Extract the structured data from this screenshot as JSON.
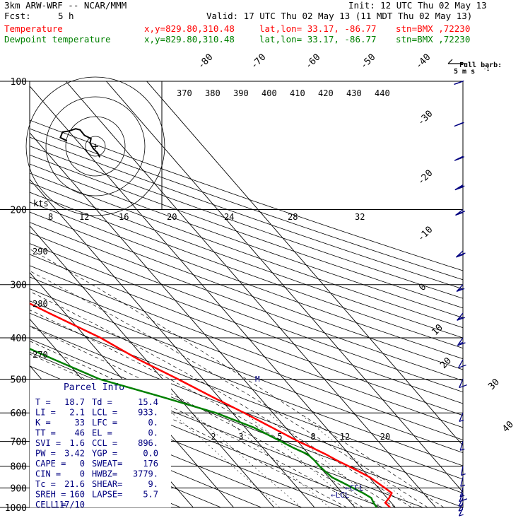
{
  "header": {
    "model": "3km ARW-WRF -- NCAR/MMM",
    "init": "Init: 12 UTC Thu 02 May 13",
    "fcst_label": "Fcst:",
    "fcst_value": "5 h",
    "valid": "Valid: 17 UTC Thu 02 May 13 (11 MDT Thu 02 May 13)"
  },
  "series_labels": [
    {
      "name": "Temperature",
      "xy": "x,y=829.80,310.48",
      "latlon": "lat,lon= 33.17, -86.77",
      "stn": "stn=BMX ,72230",
      "color": "#ff0000"
    },
    {
      "name": "Dewpoint temperature",
      "xy": "x,y=829.80,310.48",
      "latlon": "lat,lon= 33.17, -86.77",
      "stn": "stn=BMX ,72230",
      "color": "#008000"
    }
  ],
  "wind_legend": {
    "line1": "Full barb:",
    "line2": "5 m s",
    "sup": "-1"
  },
  "hodograph": {
    "units": "kts"
  },
  "parcel_info": {
    "title": "Parcel Info",
    "rows": [
      [
        "T  =",
        "18.7",
        "Td =",
        "15.4"
      ],
      [
        "LI =",
        "2.1",
        "LCL =",
        "933."
      ],
      [
        "K  =",
        "33",
        "LFC =",
        "0."
      ],
      [
        "TT =",
        "46",
        "EL  =",
        "0."
      ],
      [
        "SVI =",
        "1.6",
        "CCL =",
        "896."
      ],
      [
        "PW =",
        "3.42",
        "YGP =",
        "0.0"
      ],
      [
        "CAPE =",
        "0",
        "SWEAT=",
        "176"
      ],
      [
        "CIN =",
        "0",
        "HWBZ=",
        "3779."
      ],
      [
        "Tc =",
        "21.6",
        "SHEAR=",
        "9."
      ],
      [
        "SREH =",
        "160",
        "LAPSE=",
        "5.7"
      ],
      [
        "CELL =",
        "117/10",
        "",
        ""
      ]
    ]
  },
  "annotations": {
    "ccl": "CCL",
    "lcl": "LCL",
    "marker": "M"
  },
  "chart_data": {
    "type": "line",
    "pressure_levels": [
      100,
      200,
      300,
      400,
      500,
      600,
      700,
      800,
      900,
      1000
    ],
    "series": [
      {
        "name": "Temperature",
        "color": "#ff0000",
        "p": [
          1000,
          975,
          950,
          925,
          900,
          875,
          850,
          825,
          800,
          775,
          750,
          725,
          700,
          650,
          600,
          550,
          500,
          450,
          400,
          350,
          300,
          250,
          200,
          190,
          175,
          150,
          125,
          110,
          100
        ],
        "t": [
          18.7,
          18.5,
          20.5,
          22.2,
          21.6,
          20.9,
          20.2,
          18.8,
          17.3,
          15.6,
          14.2,
          12.3,
          10.2,
          6.7,
          2.9,
          -1.6,
          -6.2,
          -11.7,
          -16.5,
          -23.9,
          -32.0,
          -42.2,
          -54.2,
          -56.1,
          -56.5,
          -58.7,
          -61.3,
          -63.8,
          -65.5
        ]
      },
      {
        "name": "Dewpoint temperature",
        "color": "#008000",
        "p": [
          1000,
          975,
          950,
          925,
          900,
          875,
          850,
          825,
          800,
          775,
          750,
          725,
          700,
          650,
          600,
          550,
          500,
          450,
          400,
          375,
          350,
          325,
          300,
          275,
          250,
          225,
          200,
          175,
          160,
          150,
          135,
          115,
          100
        ],
        "t": [
          15.4,
          15.6,
          16.1,
          15.1,
          13.7,
          12.3,
          10.8,
          10.4,
          10.1,
          10.1,
          9.7,
          7.6,
          5.9,
          2.2,
          -4.1,
          -14.1,
          -25.6,
          -32.6,
          -40.2,
          -45.3,
          -45.2,
          -49.0,
          -52.2,
          -58.5,
          -64.5,
          -71.1,
          -75.8,
          -81.4,
          -84.3,
          -85.8,
          -85.6,
          -88.5,
          -88.3
        ]
      }
    ],
    "x_tick_labels": [
      "-80",
      "-70",
      "-60",
      "-50",
      "-40",
      "-30",
      "-20",
      "-10",
      "0",
      "10",
      "20",
      "30",
      "40"
    ],
    "y_tick_labels": [
      "100",
      "200",
      "300",
      "400",
      "500",
      "600",
      "700",
      "800",
      "900",
      "1000"
    ],
    "theta_labels": [
      "370",
      "380",
      "390",
      "400",
      "410",
      "420",
      "430",
      "440"
    ],
    "hodo_ring_labels": [
      "8",
      "12",
      "16",
      "20",
      "24",
      "28",
      "32"
    ],
    "theta_side_labels": [
      "290",
      "280",
      "270"
    ],
    "mixing_ratio_labels": [
      "2",
      "3",
      "5",
      "8",
      "12",
      "20"
    ],
    "winds": [
      {
        "p": 1000,
        "u_kt": 4,
        "v_kt": 9
      },
      {
        "p": 975,
        "u_kt": 5,
        "v_kt": 10
      },
      {
        "p": 950,
        "u_kt": 6,
        "v_kt": 12
      },
      {
        "p": 925,
        "u_kt": 6,
        "v_kt": 14
      },
      {
        "p": 900,
        "u_kt": 4,
        "v_kt": 13
      },
      {
        "p": 850,
        "u_kt": 3,
        "v_kt": 12
      },
      {
        "p": 800,
        "u_kt": 2,
        "v_kt": 11
      },
      {
        "p": 700,
        "u_kt": 3,
        "v_kt": 10
      },
      {
        "p": 600,
        "u_kt": 5,
        "v_kt": 12
      },
      {
        "p": 500,
        "u_kt": 7,
        "v_kt": 16
      },
      {
        "p": 450,
        "u_kt": 10,
        "v_kt": 18
      },
      {
        "p": 400,
        "u_kt": 14,
        "v_kt": 20
      },
      {
        "p": 350,
        "u_kt": 18,
        "v_kt": 22
      },
      {
        "p": 300,
        "u_kt": 22,
        "v_kt": 24
      },
      {
        "p": 250,
        "u_kt": 28,
        "v_kt": 26
      },
      {
        "p": 200,
        "u_kt": 34,
        "v_kt": 26
      },
      {
        "p": 175,
        "u_kt": 38,
        "v_kt": 24
      },
      {
        "p": 150,
        "u_kt": 40,
        "v_kt": 20
      },
      {
        "p": 125,
        "u_kt": 38,
        "v_kt": 16
      },
      {
        "p": 100,
        "u_kt": 34,
        "v_kt": 12
      }
    ],
    "hodograph_trace": [
      {
        "u": 4,
        "v": -10
      },
      {
        "u": 2,
        "v": -6
      },
      {
        "u": -2,
        "v": -2
      },
      {
        "u": -5,
        "v": 3
      },
      {
        "u": -4,
        "v": 7
      },
      {
        "u": -10,
        "v": 10
      },
      {
        "u": -14,
        "v": 15
      },
      {
        "u": -18,
        "v": 16
      },
      {
        "u": -24,
        "v": 14
      },
      {
        "u": -30,
        "v": 13
      },
      {
        "u": -32,
        "v": 8
      },
      {
        "u": -26,
        "v": 5
      }
    ],
    "xlabel": "",
    "ylabel": "",
    "ylim": [
      1000,
      100
    ],
    "xlim_at_1000hPa": [
      -40,
      40
    ],
    "grid": true,
    "legend": "top-left"
  }
}
